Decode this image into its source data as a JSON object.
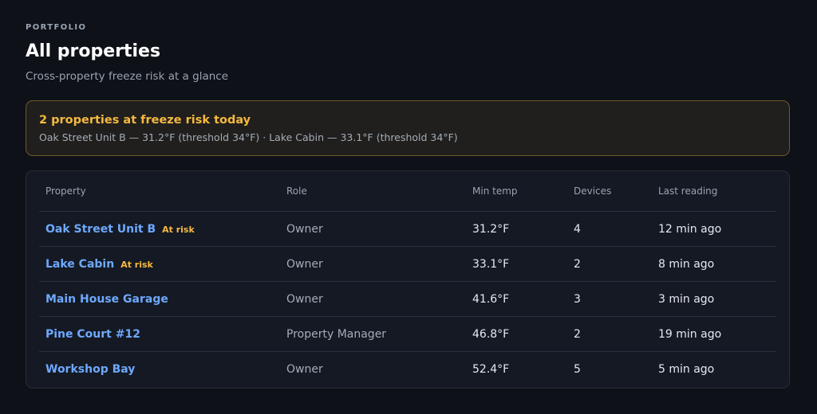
{
  "header": {
    "eyebrow": "PORTFOLIO",
    "title": "All properties",
    "subtitle": "Cross-property freeze risk at a glance"
  },
  "alert": {
    "title": "2 properties at freeze risk today",
    "body": "Oak Street Unit B — 31.2°F (threshold 34°F) · Lake Cabin — 33.1°F (threshold 34°F)",
    "accent_color": "#f5b93f"
  },
  "table": {
    "columns": [
      "Property",
      "Role",
      "Min temp",
      "Devices",
      "Last reading"
    ],
    "rows": [
      {
        "property": "Oak Street Unit B",
        "badge": "At risk",
        "role": "Owner",
        "min_temp": "31.2°F",
        "devices": "4",
        "last_reading": "12 min ago"
      },
      {
        "property": "Lake Cabin",
        "badge": "At risk",
        "role": "Owner",
        "min_temp": "33.1°F",
        "devices": "2",
        "last_reading": "8 min ago"
      },
      {
        "property": "Main House Garage",
        "badge": "",
        "role": "Owner",
        "min_temp": "41.6°F",
        "devices": "3",
        "last_reading": "3 min ago"
      },
      {
        "property": "Pine Court #12",
        "badge": "",
        "role": "Property Manager",
        "min_temp": "46.8°F",
        "devices": "2",
        "last_reading": "19 min ago"
      },
      {
        "property": "Workshop Bay",
        "badge": "",
        "role": "Owner",
        "min_temp": "52.4°F",
        "devices": "5",
        "last_reading": "5 min ago"
      }
    ]
  }
}
